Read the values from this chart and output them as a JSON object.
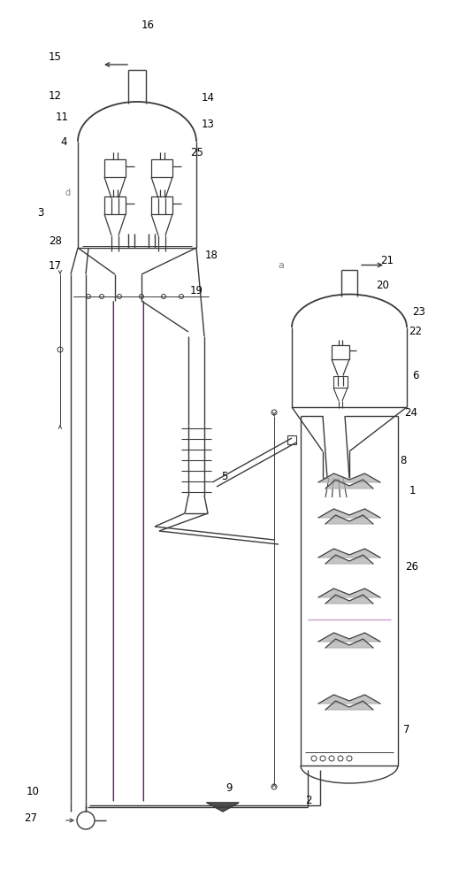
{
  "bg_color": "#ffffff",
  "lc": "#3a3a3a",
  "lc_pink": "#c8a0c8",
  "lc_green": "#7a9a7a",
  "gray_fill": "#b0b0b0",
  "figsize": [
    5.36,
    10.0
  ],
  "dpi": 100
}
